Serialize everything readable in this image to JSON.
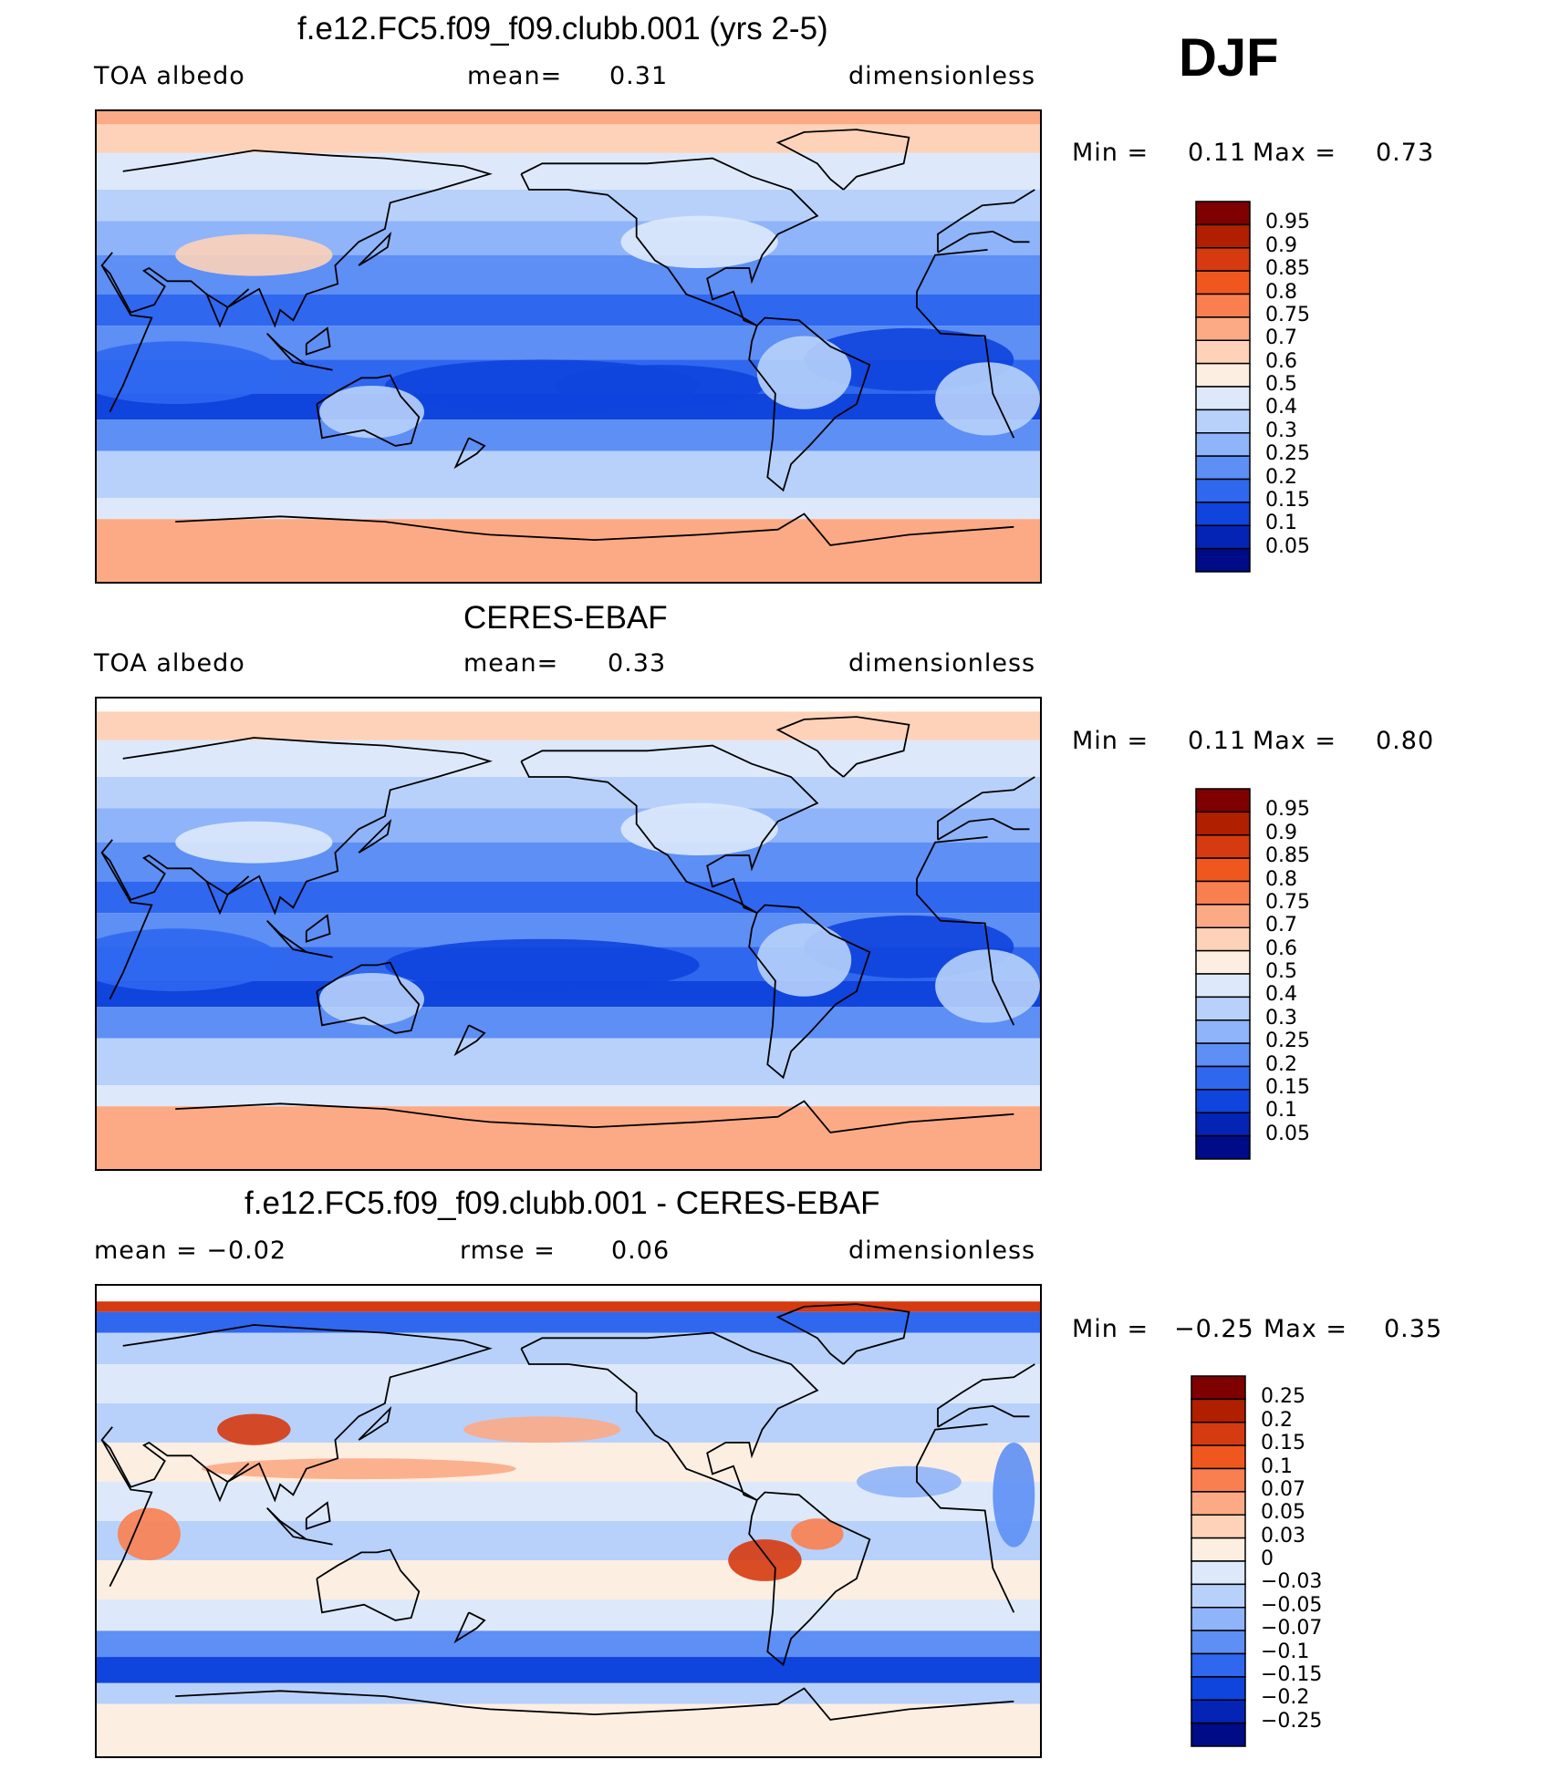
{
  "season": "DJF",
  "panels": [
    {
      "title": "f.e12.FC5.f09_f09.clubb.001 (yrs 2-5)",
      "left": "TOA  albedo",
      "middle_label": "mean=",
      "middle_value": "0.31",
      "right": "dimensionless",
      "minmax": {
        "min_label": "Min  =",
        "min": "0.11",
        "max_label": "Max  =",
        "max": "0.73"
      },
      "colorbar": {
        "labels": [
          "0.95",
          "0.9",
          "0.85",
          "0.8",
          "0.75",
          "0.7",
          "0.6",
          "0.5",
          "0.4",
          "0.3",
          "0.25",
          "0.2",
          "0.15",
          "0.1",
          "0.05"
        ],
        "colors": [
          "#7f0000",
          "#b01f00",
          "#d63a10",
          "#f0571e",
          "#fa7f50",
          "#fcaa85",
          "#fdd2b8",
          "#fdeee2",
          "#dde9fb",
          "#b8d1fb",
          "#8fb4fa",
          "#5d8ff5",
          "#2f67ef",
          "#0f44dd",
          "#0424b5",
          "#000b88"
        ]
      },
      "field": "model"
    },
    {
      "title": "CERES-EBAF",
      "left": "TOA  albedo",
      "middle_label": "mean=",
      "middle_value": "0.33",
      "right": "dimensionless",
      "minmax": {
        "min_label": "Min  =",
        "min": "0.11",
        "max_label": "Max  =",
        "max": "0.80"
      },
      "colorbar": {
        "labels": [
          "0.95",
          "0.9",
          "0.85",
          "0.8",
          "0.75",
          "0.7",
          "0.6",
          "0.5",
          "0.4",
          "0.3",
          "0.25",
          "0.2",
          "0.15",
          "0.1",
          "0.05"
        ],
        "colors": [
          "#7f0000",
          "#b01f00",
          "#d63a10",
          "#f0571e",
          "#fa7f50",
          "#fcaa85",
          "#fdd2b8",
          "#fdeee2",
          "#dde9fb",
          "#b8d1fb",
          "#8fb4fa",
          "#5d8ff5",
          "#2f67ef",
          "#0f44dd",
          "#0424b5",
          "#000b88"
        ]
      },
      "field": "obs"
    },
    {
      "title": "f.e12.FC5.f09_f09.clubb.001 - CERES-EBAF",
      "left": "mean  =   −0.02",
      "middle_label": "rmse  =",
      "middle_value": "0.06",
      "right": "dimensionless",
      "minmax": {
        "min_label": "Min  =",
        "min": "−0.25",
        "max_label": "Max  =",
        "max": "0.35"
      },
      "colorbar": {
        "labels": [
          "0.25",
          "0.2",
          "0.15",
          "0.1",
          "0.07",
          "0.05",
          "0.03",
          "0",
          "−0.03",
          "−0.05",
          "−0.07",
          "−0.1",
          "−0.15",
          "−0.2",
          "−0.25"
        ],
        "colors": [
          "#7f0000",
          "#b01f00",
          "#d63a10",
          "#f0571e",
          "#fa7f50",
          "#fcaa85",
          "#fdd2b8",
          "#fdeee2",
          "#dde9fb",
          "#b8d1fb",
          "#8fb4fa",
          "#5d8ff5",
          "#2f67ef",
          "#0f44dd",
          "#0424b5",
          "#000b88"
        ]
      },
      "field": "diff"
    }
  ]
}
